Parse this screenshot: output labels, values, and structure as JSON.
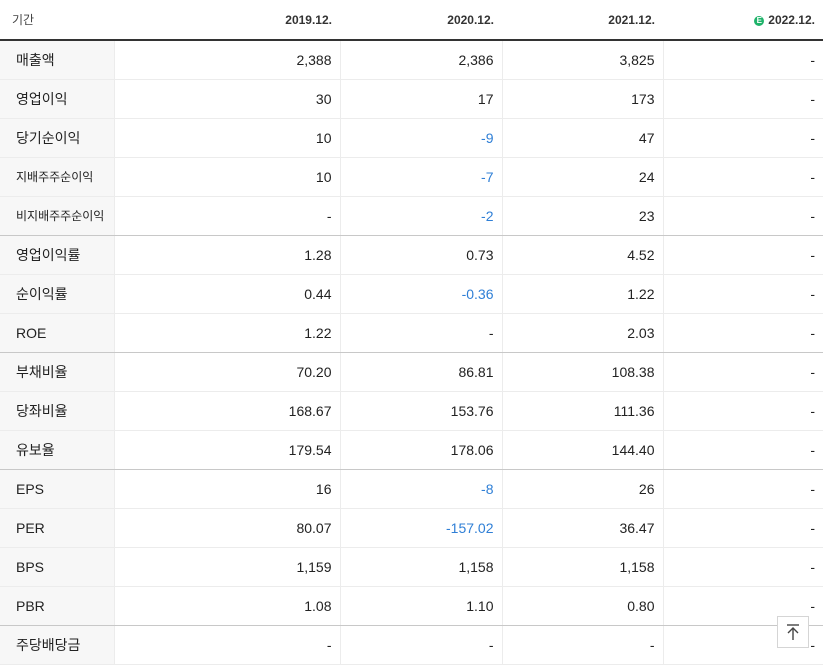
{
  "header": {
    "period_label": "기간",
    "columns": [
      "2019.12.",
      "2020.12.",
      "2021.12.",
      "2022.12."
    ],
    "estimate_badge": "E"
  },
  "rows": [
    {
      "label": "매출액",
      "values": [
        "2,388",
        "2,386",
        "3,825",
        "-"
      ]
    },
    {
      "label": "영업이익",
      "values": [
        "30",
        "17",
        "173",
        "-"
      ]
    },
    {
      "label": "당기순이익",
      "values": [
        "10",
        "-9",
        "47",
        "-"
      ]
    },
    {
      "label": "지배주주순이익",
      "values": [
        "10",
        "-7",
        "24",
        "-"
      ]
    },
    {
      "label": "비지배주주순이익",
      "values": [
        "-",
        "-2",
        "23",
        "-"
      ]
    },
    {
      "label": "영업이익률",
      "values": [
        "1.28",
        "0.73",
        "4.52",
        "-"
      ]
    },
    {
      "label": "순이익률",
      "values": [
        "0.44",
        "-0.36",
        "1.22",
        "-"
      ]
    },
    {
      "label": "ROE",
      "values": [
        "1.22",
        "-",
        "2.03",
        "-"
      ]
    },
    {
      "label": "부채비율",
      "values": [
        "70.20",
        "86.81",
        "108.38",
        "-"
      ]
    },
    {
      "label": "당좌비율",
      "values": [
        "168.67",
        "153.76",
        "111.36",
        "-"
      ]
    },
    {
      "label": "유보율",
      "values": [
        "179.54",
        "178.06",
        "144.40",
        "-"
      ]
    },
    {
      "label": "EPS",
      "values": [
        "16",
        "-8",
        "26",
        "-"
      ]
    },
    {
      "label": "PER",
      "values": [
        "80.07",
        "-157.02",
        "36.47",
        "-"
      ]
    },
    {
      "label": "BPS",
      "values": [
        "1,159",
        "1,158",
        "1,158",
        "-"
      ]
    },
    {
      "label": "PBR",
      "values": [
        "1.08",
        "1.10",
        "0.80",
        "-"
      ]
    },
    {
      "label": "주당배당금",
      "values": [
        "-",
        "-",
        "-",
        "-"
      ]
    }
  ],
  "colors": {
    "negative": "#2f7fd6",
    "estimate_badge": "#1fb36a"
  },
  "scroll_top_icon": "arrow-up-to-top-icon"
}
